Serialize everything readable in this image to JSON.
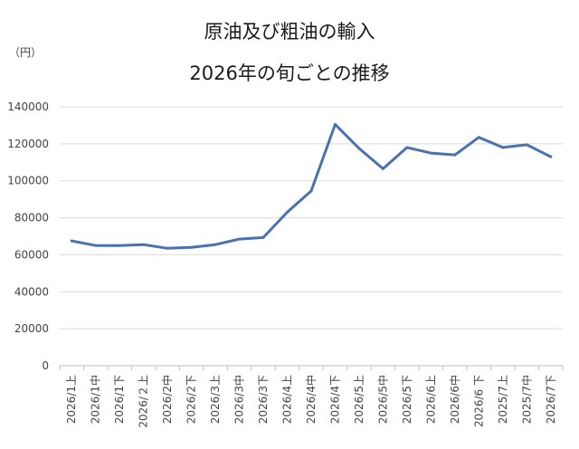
{
  "chart_data": {
    "type": "line",
    "title_lines": [
      "原油及び粗油の輸入",
      "2026年の旬ごとの推移"
    ],
    "unit_label": "（円）",
    "ylim": [
      0,
      140000
    ],
    "yticks": [
      0,
      20000,
      40000,
      60000,
      80000,
      100000,
      120000,
      140000
    ],
    "grid": true,
    "legend": "none",
    "categories": [
      "2026/1上",
      "2026/1中",
      "2026/1下",
      "2026/２上",
      "2026/2中",
      "2026/2下",
      "2026/3上",
      "2026/3中",
      "2026/3下",
      "2026/4上",
      "2026/4中",
      "2026/4下",
      "2026/5上",
      "2026/5中",
      "2026/5下",
      "2026/6上",
      "2026/6中",
      "2026/6 下",
      "2025/7上",
      "2025/7中",
      "2026/7下"
    ],
    "series": [
      {
        "color": "#4a72b0",
        "values": [
          67500,
          65000,
          65000,
          65500,
          63500,
          64000,
          65500,
          68500,
          69300,
          83000,
          94500,
          130500,
          117500,
          106500,
          118000,
          115000,
          114000,
          123500,
          118000,
          119500,
          113000
        ]
      }
    ]
  }
}
